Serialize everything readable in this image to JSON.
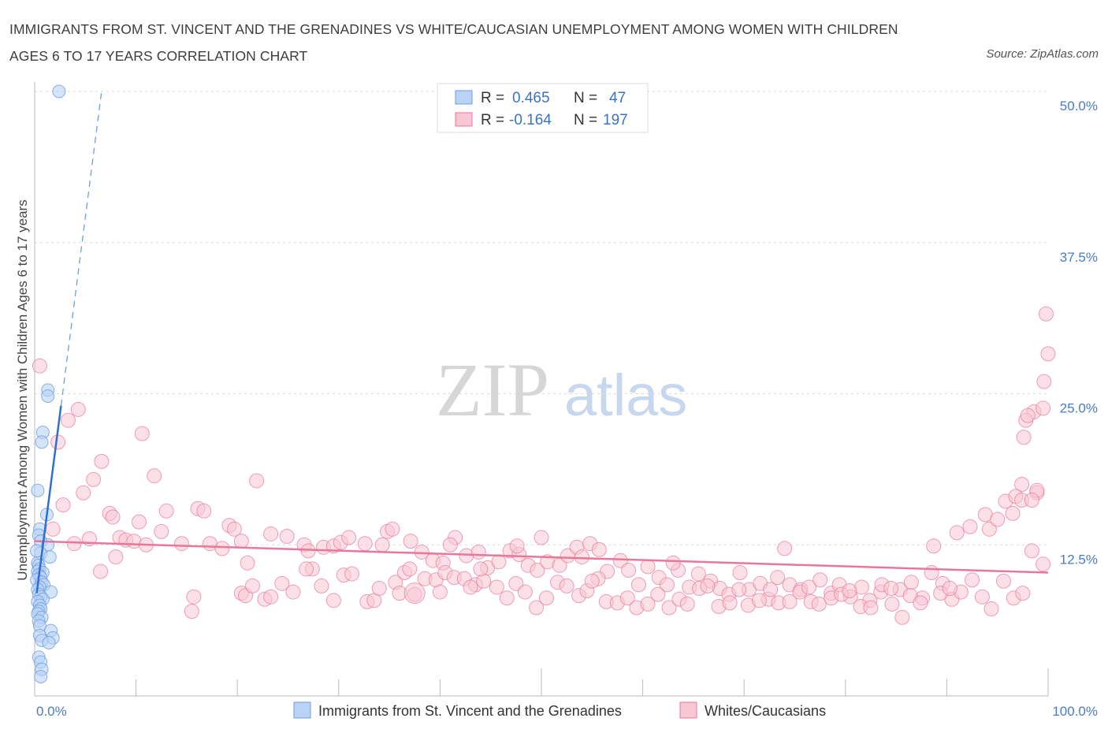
{
  "title": "IMMIGRANTS FROM ST. VINCENT AND THE GRENADINES VS WHITE/CAUCASIAN UNEMPLOYMENT AMONG WOMEN WITH CHILDREN AGES 6 TO 17 YEARS CORRELATION CHART",
  "source": "Source: ZipAtlas.com",
  "watermark": {
    "zip": "ZIP",
    "atlas": "atlas"
  },
  "legend": {
    "r_label": "R =",
    "n_label": "N =",
    "rows": [
      {
        "r": "0.465",
        "n": "47",
        "color": "#b9d2f5"
      },
      {
        "r": "-0.164",
        "n": "197",
        "color": "#f8c6d5"
      }
    ]
  },
  "bottom_legend": [
    {
      "label": "Immigrants from St. Vincent and the Grenadines",
      "color": "#b9d2f5"
    },
    {
      "label": "Whites/Caucasians",
      "color": "#f8c6d5"
    }
  ],
  "chart_data": {
    "type": "scatter",
    "title": "IMMIGRANTS FROM ST. VINCENT AND THE GRENADINES VS WHITE/CAUCASIAN UNEMPLOYMENT AMONG WOMEN WITH CHILDREN AGES 6 TO 17 YEARS CORRELATION CHART",
    "xlabel": "",
    "ylabel": "Unemployment Among Women with Children Ages 6 to 17 years",
    "xlim": [
      0,
      100
    ],
    "ylim": [
      0,
      50
    ],
    "x_tick_labels": [
      "0.0%",
      "100.0%"
    ],
    "y_ticks": [
      12.5,
      25.0,
      37.5,
      50.0
    ],
    "y_tick_labels": [
      "12.5%",
      "25.0%",
      "37.5%",
      "50.0%"
    ],
    "grid": "horizontal dashed",
    "legend_position": "top-center",
    "series": [
      {
        "name": "Immigrants from St. Vincent and the Grenadines",
        "color": "#6e9fe0",
        "fill": "#b9d2f5",
        "r": 0.465,
        "n": 47,
        "trend": {
          "x": [
            0.2,
            2.6
          ],
          "y": [
            8.5,
            24.0
          ],
          "dashed_extension_to": [
            6.6,
            50.0
          ]
        },
        "points": [
          [
            2.4,
            50.0
          ],
          [
            1.3,
            25.3
          ],
          [
            1.3,
            24.8
          ],
          [
            0.8,
            21.8
          ],
          [
            0.7,
            21.0
          ],
          [
            0.3,
            17.0
          ],
          [
            1.2,
            15.0
          ],
          [
            0.5,
            13.8
          ],
          [
            0.4,
            13.3
          ],
          [
            0.6,
            12.8
          ],
          [
            1.3,
            12.5
          ],
          [
            0.6,
            11.8
          ],
          [
            1.5,
            11.5
          ],
          [
            0.3,
            11.0
          ],
          [
            0.4,
            10.8
          ],
          [
            0.5,
            10.5
          ],
          [
            0.3,
            10.3
          ],
          [
            0.8,
            10.2
          ],
          [
            0.4,
            10.0
          ],
          [
            0.6,
            9.8
          ],
          [
            0.2,
            9.6
          ],
          [
            0.7,
            9.4
          ],
          [
            0.9,
            9.2
          ],
          [
            0.5,
            9.0
          ],
          [
            0.3,
            8.8
          ],
          [
            1.6,
            8.6
          ],
          [
            0.4,
            8.4
          ],
          [
            0.6,
            8.2
          ],
          [
            0.8,
            8.0
          ],
          [
            0.3,
            7.8
          ],
          [
            0.5,
            7.5
          ],
          [
            0.6,
            7.2
          ],
          [
            0.4,
            7.0
          ],
          [
            0.3,
            6.8
          ],
          [
            0.7,
            6.5
          ],
          [
            0.4,
            6.2
          ],
          [
            0.5,
            5.8
          ],
          [
            1.6,
            5.4
          ],
          [
            0.5,
            5.0
          ],
          [
            1.8,
            4.8
          ],
          [
            0.7,
            4.6
          ],
          [
            1.4,
            4.4
          ],
          [
            0.4,
            3.2
          ],
          [
            0.6,
            2.8
          ],
          [
            0.7,
            2.2
          ],
          [
            0.6,
            1.6
          ],
          [
            0.2,
            12.0
          ]
        ]
      },
      {
        "name": "Whites/Caucasians",
        "color": "#e8779b",
        "fill": "#f8c6d5",
        "r": -0.164,
        "n": 197,
        "trend": {
          "x": [
            0,
            100
          ],
          "y": [
            12.8,
            10.2
          ]
        },
        "points": [
          [
            0.5,
            27.3
          ],
          [
            3.3,
            22.8
          ],
          [
            4.3,
            23.7
          ],
          [
            2.3,
            21.0
          ],
          [
            10.6,
            21.7
          ],
          [
            6.6,
            19.4
          ],
          [
            5.8,
            17.9
          ],
          [
            11.8,
            18.2
          ],
          [
            21.9,
            17.8
          ],
          [
            4.8,
            16.8
          ],
          [
            2.8,
            15.8
          ],
          [
            1.8,
            13.8
          ],
          [
            7.4,
            15.1
          ],
          [
            13.0,
            15.3
          ],
          [
            16.1,
            15.5
          ],
          [
            16.7,
            15.3
          ],
          [
            7.7,
            14.8
          ],
          [
            10.3,
            14.4
          ],
          [
            12.5,
            13.6
          ],
          [
            19.2,
            14.1
          ],
          [
            19.7,
            13.8
          ],
          [
            23.3,
            13.4
          ],
          [
            24.9,
            13.2
          ],
          [
            8.4,
            13.1
          ],
          [
            9.0,
            12.9
          ],
          [
            9.8,
            12.8
          ],
          [
            3.9,
            12.6
          ],
          [
            5.4,
            13.0
          ],
          [
            11.0,
            12.5
          ],
          [
            14.5,
            12.6
          ],
          [
            17.3,
            12.6
          ],
          [
            20.4,
            12.8
          ],
          [
            26.6,
            12.5
          ],
          [
            27.0,
            12.0
          ],
          [
            28.5,
            12.3
          ],
          [
            29.5,
            12.4
          ],
          [
            30.2,
            12.7
          ],
          [
            31.0,
            13.1
          ],
          [
            32.6,
            12.6
          ],
          [
            34.8,
            13.6
          ],
          [
            35.3,
            13.8
          ],
          [
            37.1,
            12.8
          ],
          [
            38.2,
            11.9
          ],
          [
            39.3,
            11.2
          ],
          [
            40.3,
            11.0
          ],
          [
            41.5,
            13.1
          ],
          [
            42.6,
            11.6
          ],
          [
            43.8,
            11.9
          ],
          [
            44.7,
            10.6
          ],
          [
            45.8,
            11.1
          ],
          [
            46.9,
            12.0
          ],
          [
            47.8,
            11.7
          ],
          [
            48.7,
            10.8
          ],
          [
            49.6,
            10.4
          ],
          [
            50.6,
            11.1
          ],
          [
            51.8,
            10.8
          ],
          [
            52.6,
            11.6
          ],
          [
            53.5,
            12.3
          ],
          [
            54.8,
            12.6
          ],
          [
            55.7,
            12.1
          ],
          [
            56.5,
            10.3
          ],
          [
            57.8,
            11.2
          ],
          [
            58.6,
            10.4
          ],
          [
            59.6,
            9.2
          ],
          [
            60.5,
            10.7
          ],
          [
            61.6,
            9.8
          ],
          [
            62.4,
            9.2
          ],
          [
            63.5,
            10.4
          ],
          [
            64.6,
            9.0
          ],
          [
            65.5,
            10.1
          ],
          [
            66.7,
            9.5
          ],
          [
            67.6,
            8.9
          ],
          [
            68.5,
            8.4
          ],
          [
            69.6,
            10.2
          ],
          [
            70.5,
            8.8
          ],
          [
            71.6,
            9.3
          ],
          [
            72.4,
            8.0
          ],
          [
            73.3,
            9.8
          ],
          [
            74.5,
            9.2
          ],
          [
            75.6,
            8.8
          ],
          [
            76.6,
            7.8
          ],
          [
            77.5,
            9.6
          ],
          [
            78.6,
            8.5
          ],
          [
            79.4,
            9.2
          ],
          [
            80.5,
            8.2
          ],
          [
            81.6,
            9.0
          ],
          [
            82.4,
            7.9
          ],
          [
            83.5,
            8.6
          ],
          [
            84.6,
            7.6
          ],
          [
            85.4,
            8.8
          ],
          [
            86.5,
            9.4
          ],
          [
            87.6,
            8.1
          ],
          [
            88.5,
            10.2
          ],
          [
            89.6,
            9.3
          ],
          [
            90.5,
            8.0
          ],
          [
            91.4,
            8.6
          ],
          [
            92.5,
            9.6
          ],
          [
            93.5,
            8.2
          ],
          [
            94.4,
            7.2
          ],
          [
            95.6,
            9.5
          ],
          [
            96.6,
            8.1
          ],
          [
            97.5,
            8.5
          ],
          [
            98.4,
            12.0
          ],
          [
            99.5,
            10.9
          ],
          [
            88.7,
            12.4
          ],
          [
            91.0,
            13.5
          ],
          [
            92.3,
            14.0
          ],
          [
            93.8,
            15.0
          ],
          [
            94.2,
            13.8
          ],
          [
            95.0,
            14.6
          ],
          [
            95.8,
            16.1
          ],
          [
            96.5,
            15.1
          ],
          [
            97.4,
            17.5
          ],
          [
            96.8,
            16.5
          ],
          [
            98.9,
            16.8
          ],
          [
            98.6,
            23.5
          ],
          [
            97.8,
            22.8
          ],
          [
            99.5,
            23.8
          ],
          [
            98.0,
            23.2
          ],
          [
            99.6,
            26.0
          ],
          [
            100.0,
            28.3
          ],
          [
            99.8,
            31.6
          ],
          [
            97.6,
            21.4
          ],
          [
            98.9,
            17.0
          ],
          [
            97.4,
            16.2
          ],
          [
            98.4,
            16.2
          ],
          [
            6.5,
            10.3
          ],
          [
            15.5,
            7.0
          ],
          [
            15.7,
            8.2
          ],
          [
            20.4,
            8.5
          ],
          [
            20.8,
            8.3
          ],
          [
            21.5,
            9.1
          ],
          [
            22.7,
            8.0
          ],
          [
            24.4,
            9.3
          ],
          [
            25.5,
            8.6
          ],
          [
            27.4,
            10.5
          ],
          [
            28.3,
            9.1
          ],
          [
            29.5,
            7.9
          ],
          [
            30.5,
            10.0
          ],
          [
            31.3,
            10.1
          ],
          [
            32.8,
            7.8
          ],
          [
            33.5,
            7.9
          ],
          [
            34.0,
            8.9
          ],
          [
            35.6,
            9.4
          ],
          [
            36.5,
            10.2
          ],
          [
            37.5,
            8.4
          ],
          [
            38.5,
            9.7
          ],
          [
            39.6,
            9.6
          ],
          [
            40.5,
            10.2
          ],
          [
            41.4,
            9.8
          ],
          [
            42.4,
            9.7
          ],
          [
            43.5,
            9.2
          ],
          [
            44.3,
            9.5
          ],
          [
            45.6,
            9.0
          ],
          [
            46.6,
            8.1
          ],
          [
            47.5,
            9.3
          ],
          [
            48.4,
            8.6
          ],
          [
            49.5,
            7.3
          ],
          [
            50.5,
            8.1
          ],
          [
            51.6,
            9.4
          ],
          [
            52.5,
            9.1
          ],
          [
            53.7,
            8.3
          ],
          [
            54.5,
            8.7
          ],
          [
            55.6,
            9.7
          ],
          [
            56.4,
            7.8
          ],
          [
            57.5,
            7.7
          ],
          [
            58.5,
            8.1
          ],
          [
            59.4,
            7.3
          ],
          [
            60.5,
            7.6
          ],
          [
            61.5,
            8.4
          ],
          [
            62.6,
            7.3
          ],
          [
            63.6,
            8.0
          ],
          [
            64.4,
            7.6
          ],
          [
            65.6,
            8.9
          ],
          [
            66.4,
            9.1
          ],
          [
            67.5,
            7.4
          ],
          [
            68.6,
            7.7
          ],
          [
            69.5,
            8.8
          ],
          [
            70.4,
            7.5
          ],
          [
            71.5,
            7.9
          ],
          [
            72.6,
            8.8
          ],
          [
            73.4,
            7.7
          ],
          [
            74.5,
            7.8
          ],
          [
            75.5,
            8.6
          ],
          [
            76.4,
            9.0
          ],
          [
            77.4,
            7.6
          ],
          [
            78.6,
            8.1
          ],
          [
            79.6,
            8.4
          ],
          [
            80.4,
            8.7
          ],
          [
            81.5,
            7.4
          ],
          [
            82.5,
            7.3
          ],
          [
            83.6,
            9.2
          ],
          [
            84.5,
            8.9
          ],
          [
            85.6,
            6.5
          ],
          [
            86.4,
            8.3
          ],
          [
            87.4,
            7.7
          ],
          [
            89.4,
            8.5
          ],
          [
            90.3,
            8.9
          ],
          [
            74.0,
            12.2
          ],
          [
            50.0,
            13.1
          ],
          [
            47.6,
            12.4
          ],
          [
            37.0,
            10.5
          ],
          [
            26.8,
            10.5
          ],
          [
            63.0,
            11.0
          ],
          [
            54.0,
            11.5
          ],
          [
            40.0,
            8.6
          ],
          [
            36.0,
            8.5
          ],
          [
            41.0,
            12.5
          ],
          [
            18.5,
            12.2
          ],
          [
            43.0,
            9.0
          ],
          [
            23.3,
            8.2
          ],
          [
            55.0,
            9.5
          ],
          [
            8.0,
            11.5
          ],
          [
            44.0,
            10.5
          ],
          [
            34.3,
            12.5
          ],
          [
            21.0,
            11.0
          ]
        ]
      }
    ]
  }
}
